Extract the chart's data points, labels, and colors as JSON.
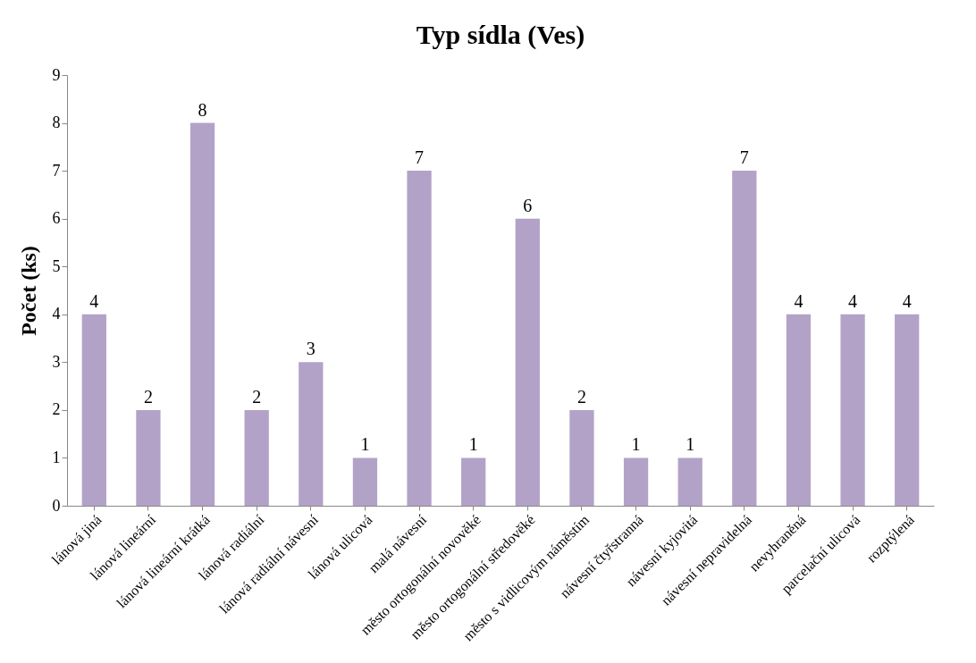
{
  "chart_data": {
    "type": "bar",
    "title": "Typ sídla (Ves)",
    "ylabel": "Počet (ks)",
    "categories": [
      "lánová jiná",
      "lánová lineární",
      "lánová lineární krátká",
      "lánová radiální",
      "lánová radiální návesní",
      "lánová ulicová",
      "malá návesní",
      "město ortogonální novověké",
      "město ortogonální středověké",
      "město s vidlicovým náměstím",
      "návesní čtyřstranná",
      "návesní kyjovitá",
      "návesní nepravidelná",
      "nevyhraněná",
      "parcelační ulicová",
      "rozptýlená"
    ],
    "values": [
      4,
      2,
      8,
      2,
      3,
      1,
      7,
      1,
      6,
      2,
      1,
      1,
      7,
      4,
      4,
      4
    ],
    "color": "#b3a2c7",
    "ylim": [
      0,
      9
    ],
    "yticks": [
      0,
      1,
      2,
      3,
      4,
      5,
      6,
      7,
      8,
      9
    ],
    "grid": false,
    "data_labels": true
  }
}
